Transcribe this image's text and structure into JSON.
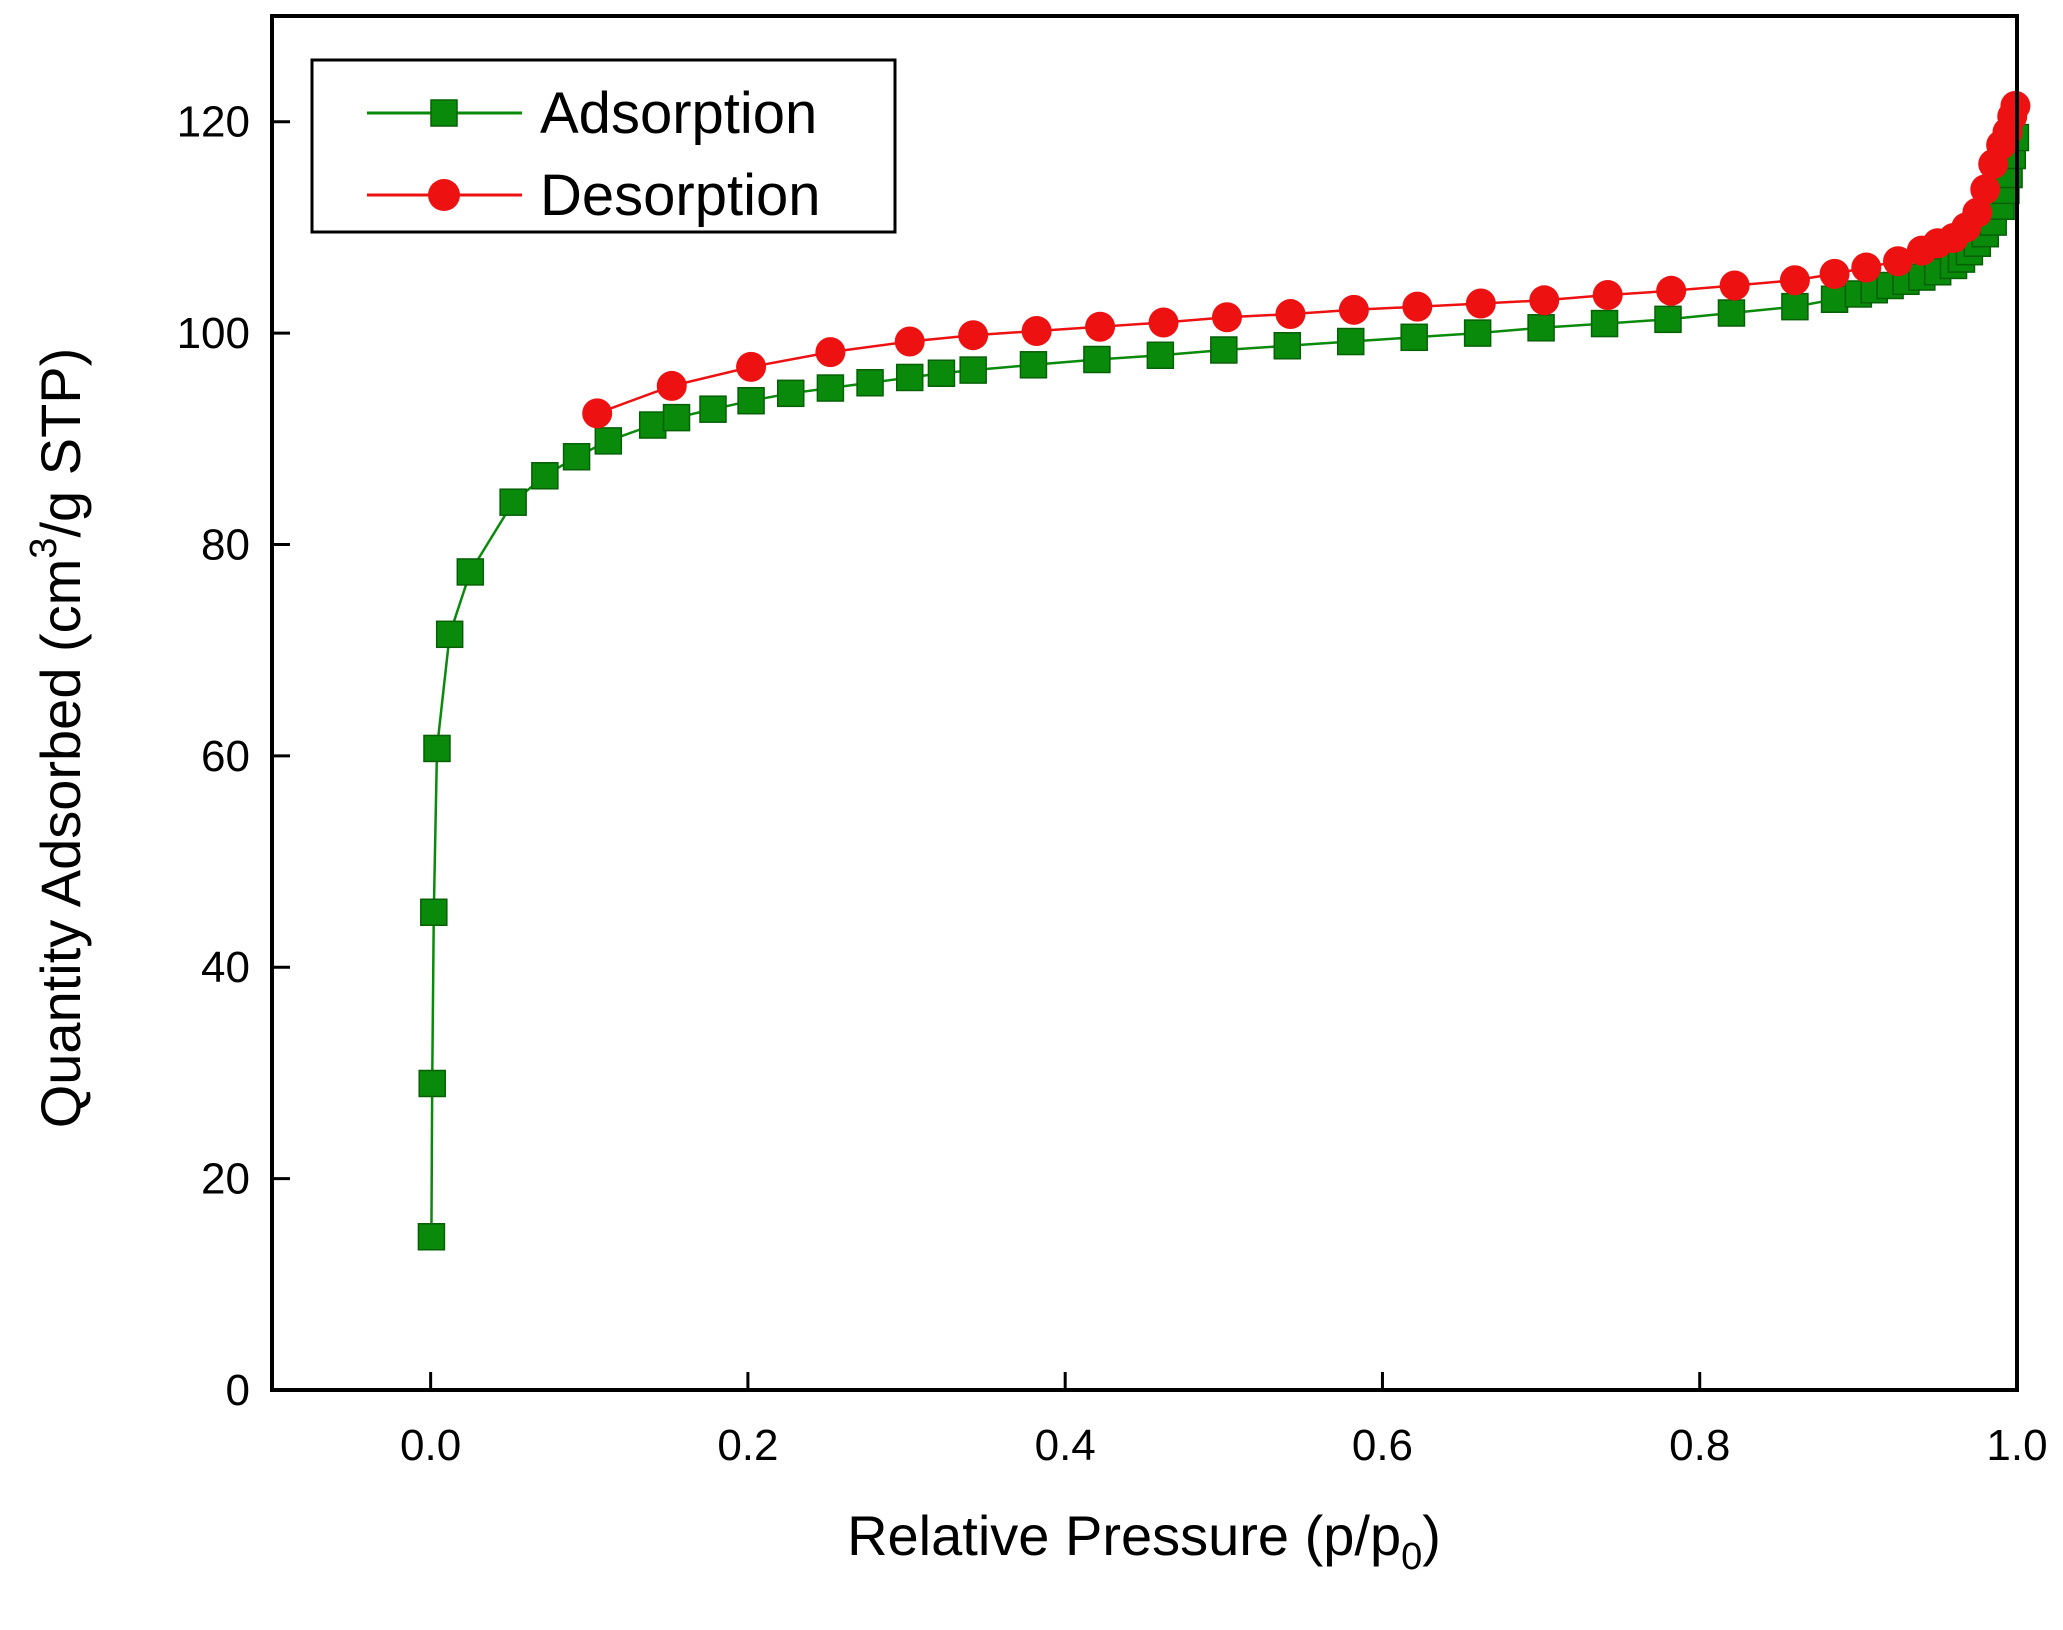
{
  "chart_data": {
    "type": "line",
    "xlabel": {
      "main": "Relative Pressure (p/p",
      "sub": "0",
      "close": ")"
    },
    "ylabel": {
      "main": "Quantity Adsorbed (cm",
      "sup": "3",
      "rest": "/g STP)"
    },
    "xlim": [
      -0.1,
      1.0
    ],
    "ylim": [
      0,
      130
    ],
    "xticks": [
      0.0,
      0.2,
      0.4,
      0.6,
      0.8,
      1.0
    ],
    "xtick_labels": [
      "0.0",
      "0.2",
      "0.4",
      "0.6",
      "0.8",
      "1.0"
    ],
    "yticks": [
      0,
      20,
      40,
      60,
      80,
      100,
      120
    ],
    "ytick_labels": [
      "0",
      "20",
      "40",
      "60",
      "80",
      "100",
      "120"
    ],
    "grid": false,
    "legend_position": "top-left",
    "series": [
      {
        "name": "Adsorption",
        "color": "#0a8a0a",
        "marker": "square",
        "x": [
          0.0005,
          0.001,
          0.002,
          0.004,
          0.012,
          0.025,
          0.052,
          0.072,
          0.092,
          0.112,
          0.14,
          0.155,
          0.178,
          0.202,
          0.227,
          0.252,
          0.277,
          0.302,
          0.322,
          0.342,
          0.38,
          0.42,
          0.46,
          0.5,
          0.54,
          0.58,
          0.62,
          0.66,
          0.7,
          0.74,
          0.78,
          0.82,
          0.86,
          0.885,
          0.9,
          0.91,
          0.92,
          0.93,
          0.94,
          0.95,
          0.96,
          0.965,
          0.97,
          0.975,
          0.98,
          0.985,
          0.99,
          0.993,
          0.995,
          0.997,
          0.999
        ],
        "y": [
          14.5,
          29.0,
          45.2,
          60.7,
          71.5,
          77.4,
          84.0,
          86.5,
          88.3,
          89.8,
          91.3,
          92.0,
          92.8,
          93.6,
          94.3,
          94.8,
          95.3,
          95.8,
          96.2,
          96.5,
          97.0,
          97.5,
          97.9,
          98.4,
          98.8,
          99.2,
          99.6,
          100.0,
          100.5,
          100.9,
          101.3,
          101.9,
          102.5,
          103.2,
          103.7,
          104.1,
          104.5,
          104.9,
          105.3,
          105.8,
          106.4,
          107.0,
          107.7,
          108.5,
          109.4,
          110.5,
          112.0,
          113.5,
          115.0,
          116.8,
          118.5
        ]
      },
      {
        "name": "Desorption",
        "color": "#ee1111",
        "marker": "circle",
        "x": [
          0.999,
          0.997,
          0.994,
          0.99,
          0.985,
          0.98,
          0.975,
          0.968,
          0.96,
          0.95,
          0.94,
          0.925,
          0.905,
          0.885,
          0.86,
          0.822,
          0.782,
          0.742,
          0.702,
          0.662,
          0.622,
          0.582,
          0.542,
          0.502,
          0.462,
          0.422,
          0.382,
          0.342,
          0.302,
          0.252,
          0.202,
          0.152,
          0.105
        ],
        "y": [
          121.5,
          120.5,
          119.0,
          117.8,
          116.0,
          113.6,
          111.4,
          110.0,
          109.0,
          108.5,
          107.8,
          106.8,
          106.2,
          105.6,
          105.0,
          104.5,
          104.0,
          103.6,
          103.1,
          102.8,
          102.5,
          102.2,
          101.8,
          101.5,
          101.0,
          100.6,
          100.2,
          99.8,
          99.2,
          98.2,
          96.8,
          95.0,
          92.4
        ]
      }
    ]
  }
}
